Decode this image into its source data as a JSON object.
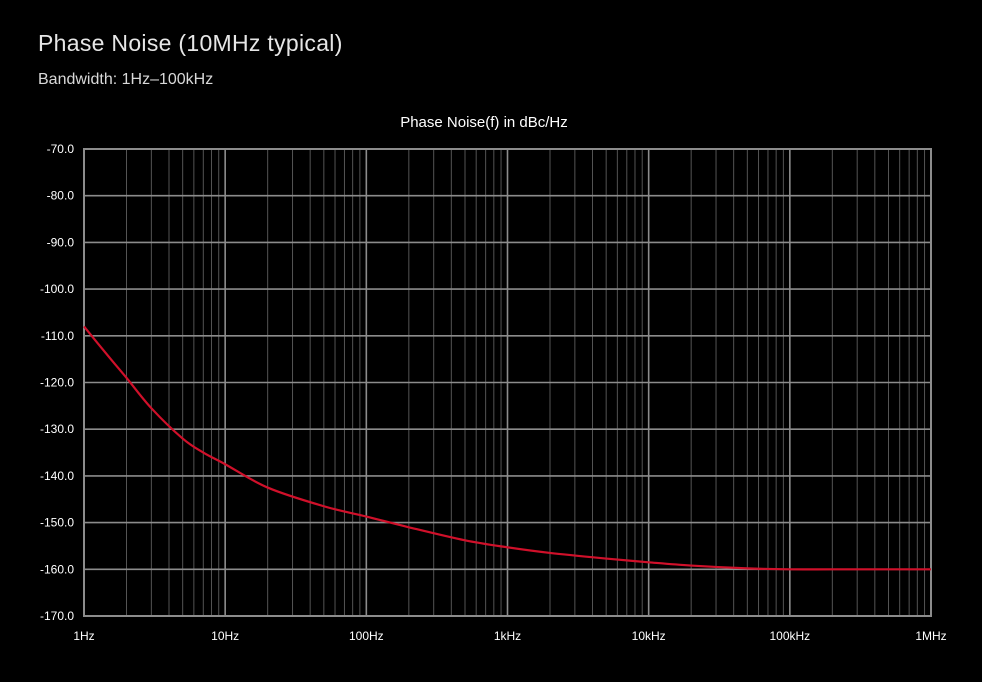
{
  "page": {
    "heading": "Phase Noise (10MHz typical)",
    "subheading": "Bandwidth: 1Hz–100kHz"
  },
  "colors": {
    "background": "#000000",
    "grid": "#8c8c8c",
    "text": "#ffffff",
    "series": "#d0102a"
  },
  "chart_data": {
    "type": "line",
    "title": "Phase Noise(f) in dBc/Hz",
    "xlabel": "",
    "ylabel": "",
    "x_scale": "log",
    "xlim": [
      1,
      1000000
    ],
    "ylim": [
      -170,
      -70
    ],
    "grid": true,
    "x_ticks": [
      {
        "value": 1,
        "label": "1Hz"
      },
      {
        "value": 10,
        "label": "10Hz"
      },
      {
        "value": 100,
        "label": "100Hz"
      },
      {
        "value": 1000,
        "label": "1kHz"
      },
      {
        "value": 10000,
        "label": "10kHz"
      },
      {
        "value": 100000,
        "label": "100kHz"
      },
      {
        "value": 1000000,
        "label": "1MHz"
      }
    ],
    "y_ticks": [
      {
        "value": -70,
        "label": "-70.0"
      },
      {
        "value": -80,
        "label": "-80.0"
      },
      {
        "value": -90,
        "label": "-90.0"
      },
      {
        "value": -100,
        "label": "-100.0"
      },
      {
        "value": -110,
        "label": "-110.0"
      },
      {
        "value": -120,
        "label": "-120.0"
      },
      {
        "value": -130,
        "label": "-130.0"
      },
      {
        "value": -140,
        "label": "-140.0"
      },
      {
        "value": -150,
        "label": "-150.0"
      },
      {
        "value": -160,
        "label": "-160.0"
      },
      {
        "value": -170,
        "label": "-170.0"
      }
    ],
    "series": [
      {
        "x": [
          1,
          1.5,
          2,
          3,
          5,
          7,
          10,
          20,
          50,
          100,
          200,
          500,
          1000,
          2000,
          5000,
          10000,
          20000,
          50000,
          100000,
          200000,
          500000,
          1000000
        ],
        "y": [
          -108,
          -114.5,
          -119,
          -125.5,
          -132,
          -135,
          -137.5,
          -142.5,
          -146.5,
          -148.7,
          -151,
          -153.8,
          -155.3,
          -156.5,
          -157.7,
          -158.5,
          -159.2,
          -159.8,
          -160,
          -160,
          -160,
          -160
        ]
      }
    ]
  }
}
